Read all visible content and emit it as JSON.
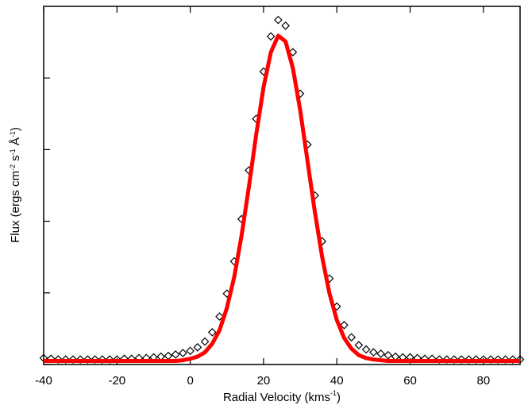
{
  "chart_data": {
    "type": "scatter",
    "xlabel": [
      {
        "text": "Radial Velocity (kms"
      },
      {
        "text": "-1",
        "sup": true
      },
      {
        "text": ")"
      }
    ],
    "ylabel": [
      {
        "text": "Flux (ergs cm"
      },
      {
        "text": "-2",
        "sup": true
      },
      {
        "text": " s"
      },
      {
        "text": "-1",
        "sup": true
      },
      {
        "text": " Å"
      },
      {
        "text": "-1",
        "sup": true
      },
      {
        "text": ")"
      }
    ],
    "x": [
      -40,
      -38,
      -36,
      -34,
      -32,
      -30,
      -28,
      -26,
      -24,
      -22,
      -20,
      -18,
      -16,
      -14,
      -12,
      -10,
      -8,
      -6,
      -4,
      -2,
      0,
      2,
      4,
      6,
      8,
      10,
      12,
      14,
      16,
      18,
      20,
      22,
      24,
      26,
      28,
      30,
      32,
      34,
      36,
      38,
      40,
      42,
      44,
      46,
      48,
      50,
      52,
      54,
      56,
      58,
      60,
      62,
      64,
      66,
      68,
      70,
      72,
      74,
      76,
      78,
      80,
      82,
      84,
      86,
      88,
      90
    ],
    "series": [
      {
        "color": "#000000",
        "marker": "diamond",
        "values": [
          0.09,
          0.08,
          0.07,
          0.07,
          0.07,
          0.07,
          0.07,
          0.07,
          0.07,
          0.07,
          0.07,
          0.08,
          0.08,
          0.09,
          0.09,
          0.1,
          0.11,
          0.12,
          0.14,
          0.16,
          0.19,
          0.24,
          0.32,
          0.45,
          0.67,
          0.99,
          1.44,
          2.03,
          2.71,
          3.43,
          4.09,
          4.58,
          4.81,
          4.73,
          4.36,
          3.78,
          3.07,
          2.36,
          1.72,
          1.2,
          0.81,
          0.55,
          0.38,
          0.27,
          0.21,
          0.17,
          0.15,
          0.13,
          0.11,
          0.1,
          0.1,
          0.09,
          0.08,
          0.08,
          0.07,
          0.07,
          0.07,
          0.07,
          0.07,
          0.07,
          0.07,
          0.07,
          0.07,
          0.07,
          0.07,
          0.07
        ]
      },
      {
        "color": "#ff0000",
        "marker": "line",
        "values": [
          0.05,
          0.05,
          0.05,
          0.05,
          0.05,
          0.05,
          0.05,
          0.05,
          0.05,
          0.05,
          0.05,
          0.05,
          0.05,
          0.05,
          0.05,
          0.05,
          0.05,
          0.05,
          0.05,
          0.06,
          0.08,
          0.11,
          0.17,
          0.29,
          0.48,
          0.79,
          1.22,
          1.8,
          2.48,
          3.21,
          3.87,
          4.36,
          4.59,
          4.51,
          4.14,
          3.55,
          2.84,
          2.13,
          1.5,
          0.99,
          0.62,
          0.37,
          0.22,
          0.13,
          0.09,
          0.07,
          0.06,
          0.05,
          0.05,
          0.05,
          0.05,
          0.05,
          0.05,
          0.05,
          0.05,
          0.05,
          0.05,
          0.05,
          0.05,
          0.05,
          0.05,
          0.05,
          0.05,
          0.05,
          0.05,
          0.05
        ]
      }
    ],
    "xlim": [
      -40,
      90
    ],
    "xticks": [
      -40,
      -20,
      0,
      20,
      40,
      60,
      80
    ],
    "ylim": [
      0,
      5
    ],
    "yticks": [
      0,
      1,
      2,
      3,
      4
    ],
    "ytick_labels": false
  }
}
